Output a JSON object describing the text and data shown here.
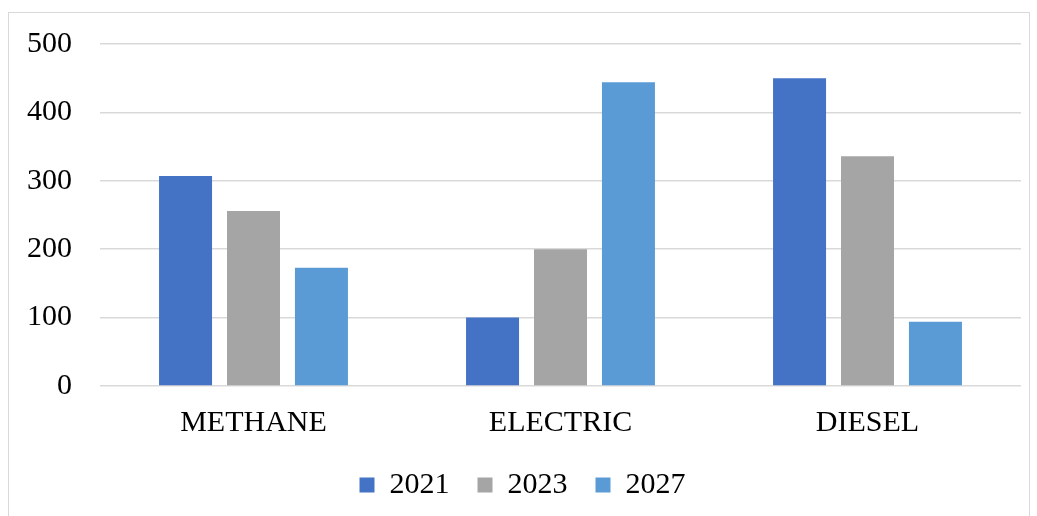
{
  "chart_data": {
    "type": "bar",
    "categories": [
      "METHANE",
      "ELECTRIC",
      "DIESEL"
    ],
    "series": [
      {
        "name": "2021",
        "color": "#4472c4",
        "values": [
          307,
          100,
          450
        ]
      },
      {
        "name": "2023",
        "color": "#a5a5a5",
        "values": [
          256,
          200,
          336
        ]
      },
      {
        "name": "2027",
        "color": "#5b9bd5",
        "values": [
          173,
          444,
          94
        ]
      }
    ],
    "ylim": [
      0,
      500
    ],
    "yticks": [
      0,
      100,
      200,
      300,
      400,
      500
    ],
    "grid": "y",
    "legend": "bottom"
  }
}
